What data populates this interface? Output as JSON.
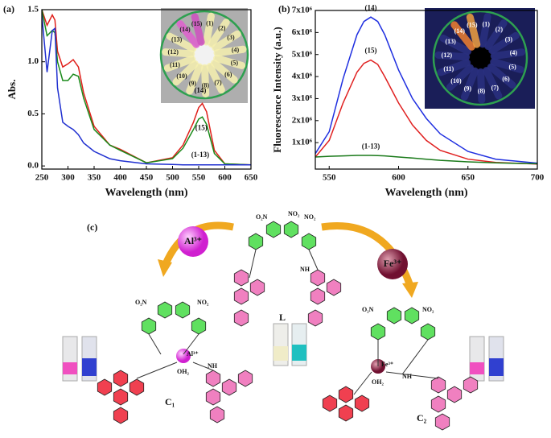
{
  "figure": {
    "panels": [
      "(a)",
      "(b)",
      "(c)"
    ],
    "inset_labels": [
      "(1)",
      "(2)",
      "(3)",
      "(4)",
      "(5)",
      "(6)",
      "(7)",
      "(8)",
      "(9)",
      "(10)",
      "(11)",
      "(12)",
      "(13)",
      "(14)",
      "(15)"
    ]
  },
  "chart_data": [
    {
      "type": "line",
      "ylabel": "Abs.",
      "xlabel": "Wavelength (nm)",
      "x": [
        250,
        260,
        270,
        275,
        280,
        290,
        300,
        310,
        320,
        330,
        350,
        380,
        400,
        450,
        500,
        520,
        540,
        550,
        557,
        565,
        580,
        600,
        650
      ],
      "series": [
        {
          "name": "(14)",
          "color": "#e0201b",
          "values": [
            1.5,
            1.35,
            1.45,
            1.4,
            1.1,
            0.95,
            0.98,
            1.02,
            0.95,
            0.7,
            0.38,
            0.2,
            0.16,
            0.03,
            0.08,
            0.2,
            0.42,
            0.56,
            0.6,
            0.52,
            0.15,
            0.02,
            0.01
          ]
        },
        {
          "name": "(15)",
          "color": "#1a8a1a",
          "values": [
            1.5,
            1.25,
            1.3,
            1.28,
            1.0,
            0.82,
            0.82,
            0.88,
            0.86,
            0.65,
            0.35,
            0.2,
            0.15,
            0.03,
            0.07,
            0.17,
            0.35,
            0.45,
            0.47,
            0.4,
            0.12,
            0.02,
            0.01
          ]
        },
        {
          "name": "(1-13)",
          "color": "#2030d0",
          "values": [
            1.45,
            0.9,
            1.3,
            1.32,
            0.75,
            0.42,
            0.38,
            0.35,
            0.3,
            0.22,
            0.14,
            0.07,
            0.05,
            0.02,
            0.015,
            0.01,
            0.01,
            0.01,
            0.01,
            0.01,
            0.01,
            0.01,
            0.01
          ]
        }
      ],
      "xlim": [
        250,
        650
      ],
      "xticks": [
        250,
        300,
        350,
        400,
        450,
        500,
        550,
        600,
        650
      ],
      "ylim": [
        -0.03,
        1.5
      ],
      "yticks": [
        {
          "value": 0,
          "label": "0.0"
        },
        0.5,
        {
          "value": 1,
          "label": "1.0"
        },
        1.5
      ]
    },
    {
      "type": "line",
      "ylabel": "Fluorescence Intensity (a.u.)",
      "xlabel": "Wavelength (nm)",
      "x": [
        540,
        550,
        560,
        570,
        575,
        580,
        585,
        590,
        600,
        610,
        620,
        630,
        650,
        670,
        700
      ],
      "series": [
        {
          "name": "(14)",
          "color": "#1f2fe0",
          "values": [
            500000,
            1500000,
            3900000,
            5900000,
            6500000,
            6700000,
            6500000,
            5900000,
            4300000,
            3000000,
            2100000,
            1400000,
            600000,
            250000,
            70000
          ]
        },
        {
          "name": "(15)",
          "color": "#e02020",
          "values": [
            350000,
            1100000,
            2800000,
            4200000,
            4600000,
            4750000,
            4550000,
            4000000,
            2800000,
            1800000,
            1100000,
            650000,
            250000,
            100000,
            30000
          ]
        },
        {
          "name": "(1-13)",
          "color": "#1a7a1a",
          "values": [
            350000,
            380000,
            400000,
            420000,
            420000,
            420000,
            410000,
            400000,
            350000,
            300000,
            250000,
            200000,
            130000,
            80000,
            40000
          ]
        }
      ],
      "xlim": [
        540,
        700
      ],
      "xticks": [
        550,
        600,
        650,
        700
      ],
      "ylim": [
        -200000,
        7000000
      ],
      "yticks": [
        {
          "value": 1000000,
          "label": "1x10⁶"
        },
        {
          "value": 2000000,
          "label": "2x10⁶"
        },
        {
          "value": 3000000,
          "label": "3x10⁶"
        },
        {
          "value": 4000000,
          "label": "4x10⁶"
        },
        {
          "value": 5000000,
          "label": "5x10⁶"
        },
        {
          "value": 6000000,
          "label": "6x10⁶"
        },
        {
          "value": 7000000,
          "label": "7x10⁶"
        }
      ]
    }
  ],
  "diagram": {
    "ions": [
      "Al³⁺",
      "Fe³⁺"
    ],
    "ligand": "L",
    "complexes": [
      "C₁",
      "C₂"
    ],
    "groups": {
      "nitro": "NO₂",
      "nitro_left": "O₂N",
      "water": "OH₂",
      "nh": "NH"
    }
  }
}
